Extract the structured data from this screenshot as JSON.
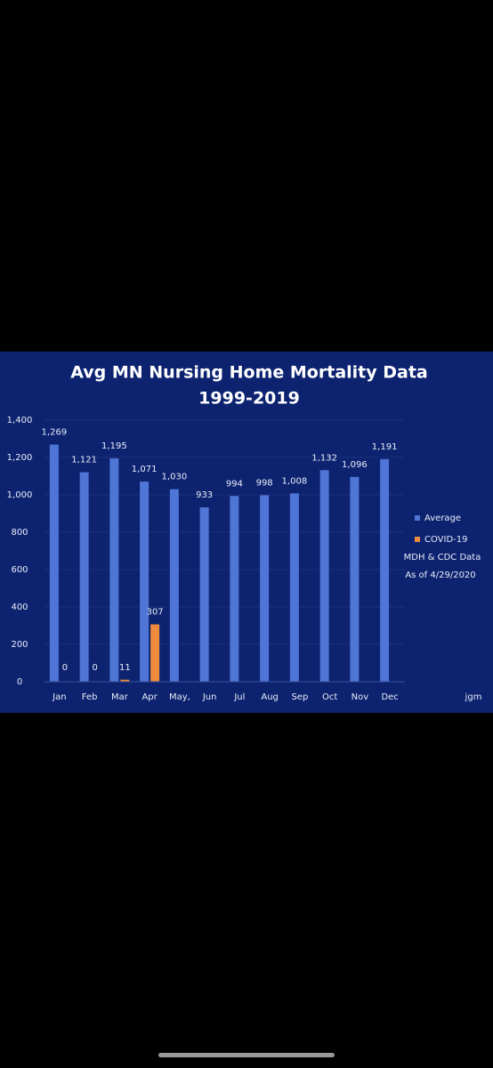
{
  "chart_data": {
    "type": "bar",
    "title": "Avg MN Nursing Home Mortality Data",
    "subtitle": "1999-2019",
    "categories": [
      "Jan",
      "Feb",
      "Mar",
      "Apr",
      "May,",
      "Jun",
      "Jul",
      "Aug",
      "Sep",
      "Oct",
      "Nov",
      "Dec"
    ],
    "series": [
      {
        "name": "Average",
        "color": "#4f75d6",
        "values": [
          1269,
          1121,
          1195,
          1071,
          1030,
          933,
          994,
          998,
          1008,
          1132,
          1096,
          1191
        ],
        "value_labels": [
          "1,269",
          "1,121",
          "1,195",
          "1,071",
          "1,030",
          "933",
          "994",
          "998",
          "1,008",
          "1,132",
          "1,096",
          "1,191"
        ]
      },
      {
        "name": "COVID-19",
        "color": "#ee8a3c",
        "values": [
          0,
          0,
          11,
          307,
          null,
          null,
          null,
          null,
          null,
          null,
          null,
          null
        ]
      }
    ],
    "ylim": [
      0,
      1400
    ],
    "yticks": [
      0,
      200,
      400,
      600,
      800,
      {
        "value": 1000,
        "label": "1,000"
      },
      {
        "value": 1200,
        "label": "1,200"
      },
      {
        "value": 1400,
        "label": "1,400"
      }
    ],
    "grid": true,
    "legend": "right",
    "annotations": [
      "MDH & CDC Data",
      "As of 4/29/2020",
      "jgm"
    ]
  }
}
